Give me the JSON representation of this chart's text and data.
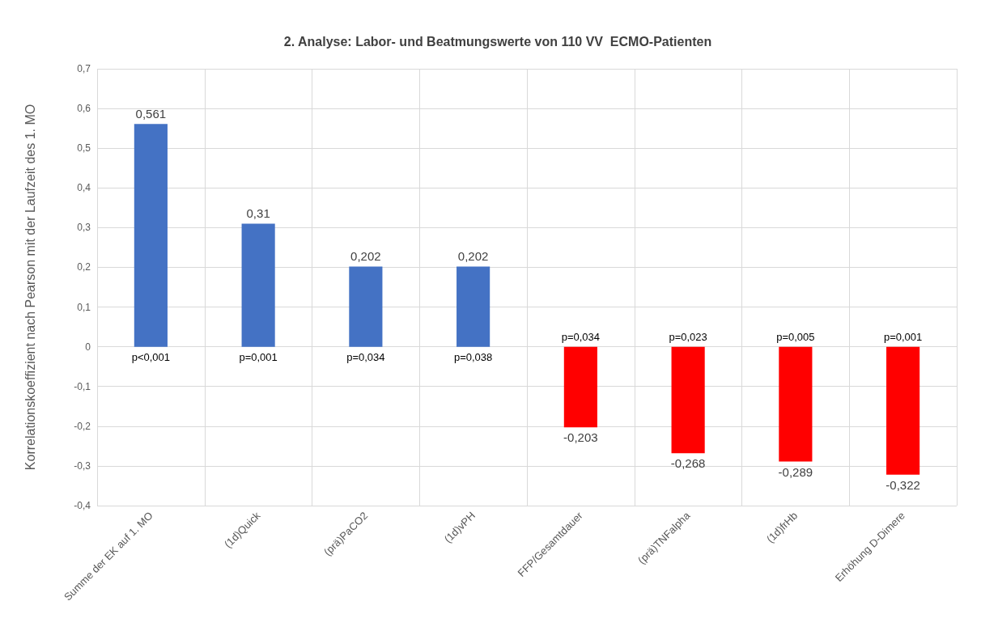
{
  "chart_data": {
    "type": "bar",
    "title": "2. Analyse: Labor- und Beatmungswerte von 110 VV  ECMO-Patienten",
    "ylabel": "Korrelationskoeffizient nach Pearson mit der Laufzeit des 1. MO",
    "categories": [
      "Summe der EK auf 1. MO",
      "(1d)Quick",
      "(prä)PaCO2",
      "(1d)vPH",
      "FFP/Gesamtdauer",
      "(prä)TNFalpha",
      "(1d)frHb",
      "Erhöhung D-Dimere"
    ],
    "values": [
      0.561,
      0.31,
      0.202,
      0.202,
      -0.203,
      -0.268,
      -0.289,
      -0.322
    ],
    "colors": [
      "#4472c4",
      "#4472c4",
      "#4472c4",
      "#4472c4",
      "#ff0000",
      "#ff0000",
      "#ff0000",
      "#ff0000"
    ],
    "value_labels": [
      "0,561",
      "0,31",
      "0,202",
      "0,202",
      "-0,203",
      "-0,268",
      "-0,289",
      "-0,322"
    ],
    "ylim": [
      -0.4,
      0.7
    ],
    "yticks": [
      {
        "value": -0.4,
        "label": "-0,4"
      },
      {
        "value": -0.3,
        "label": "-0,3"
      },
      {
        "value": -0.2,
        "label": "-0,2"
      },
      {
        "value": -0.1,
        "label": "-0,1"
      },
      0,
      {
        "value": 0.1,
        "label": "0,1"
      },
      {
        "value": 0.2,
        "label": "0,2"
      },
      {
        "value": 0.3,
        "label": "0,3"
      },
      {
        "value": 0.4,
        "label": "0,4"
      },
      {
        "value": 0.5,
        "label": "0,5"
      },
      {
        "value": 0.6,
        "label": "0,6"
      },
      {
        "value": 0.7,
        "label": "0,7"
      }
    ],
    "grid": true,
    "annotations": [
      {
        "text": "p<0,001",
        "x": "Summe der EK auf 1. MO",
        "y": 0
      },
      {
        "text": "p=0,001",
        "x": "(1d)Quick",
        "y": 0
      },
      {
        "text": "p=0,034",
        "x": "(prä)PaCO2",
        "y": 0
      },
      {
        "text": "p=0,038",
        "x": "(1d)vPH",
        "y": 0
      },
      {
        "text": "p=0,034",
        "x": "FFP/Gesamtdauer",
        "y": 0
      },
      {
        "text": "p=0,023",
        "x": "(prä)TNFalpha",
        "y": 0
      },
      {
        "text": "p=0,005",
        "x": "(1d)frHb",
        "y": 0
      },
      {
        "text": "p=0,001",
        "x": "Erhöhung D-Dimere",
        "y": 0
      }
    ]
  }
}
